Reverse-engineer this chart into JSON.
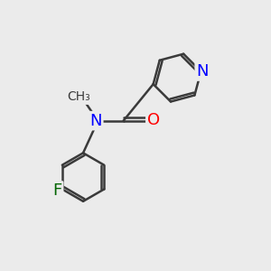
{
  "background_color": "#ebebeb",
  "bond_color": "#3a3a3a",
  "bond_width": 1.8,
  "atom_colors": {
    "N": "#0000ff",
    "O": "#ff0000",
    "F": "#006400",
    "C": "#3a3a3a"
  },
  "font_size_atom": 13,
  "font_size_methyl": 11,
  "figsize": [
    3.0,
    3.0
  ],
  "dpi": 100
}
